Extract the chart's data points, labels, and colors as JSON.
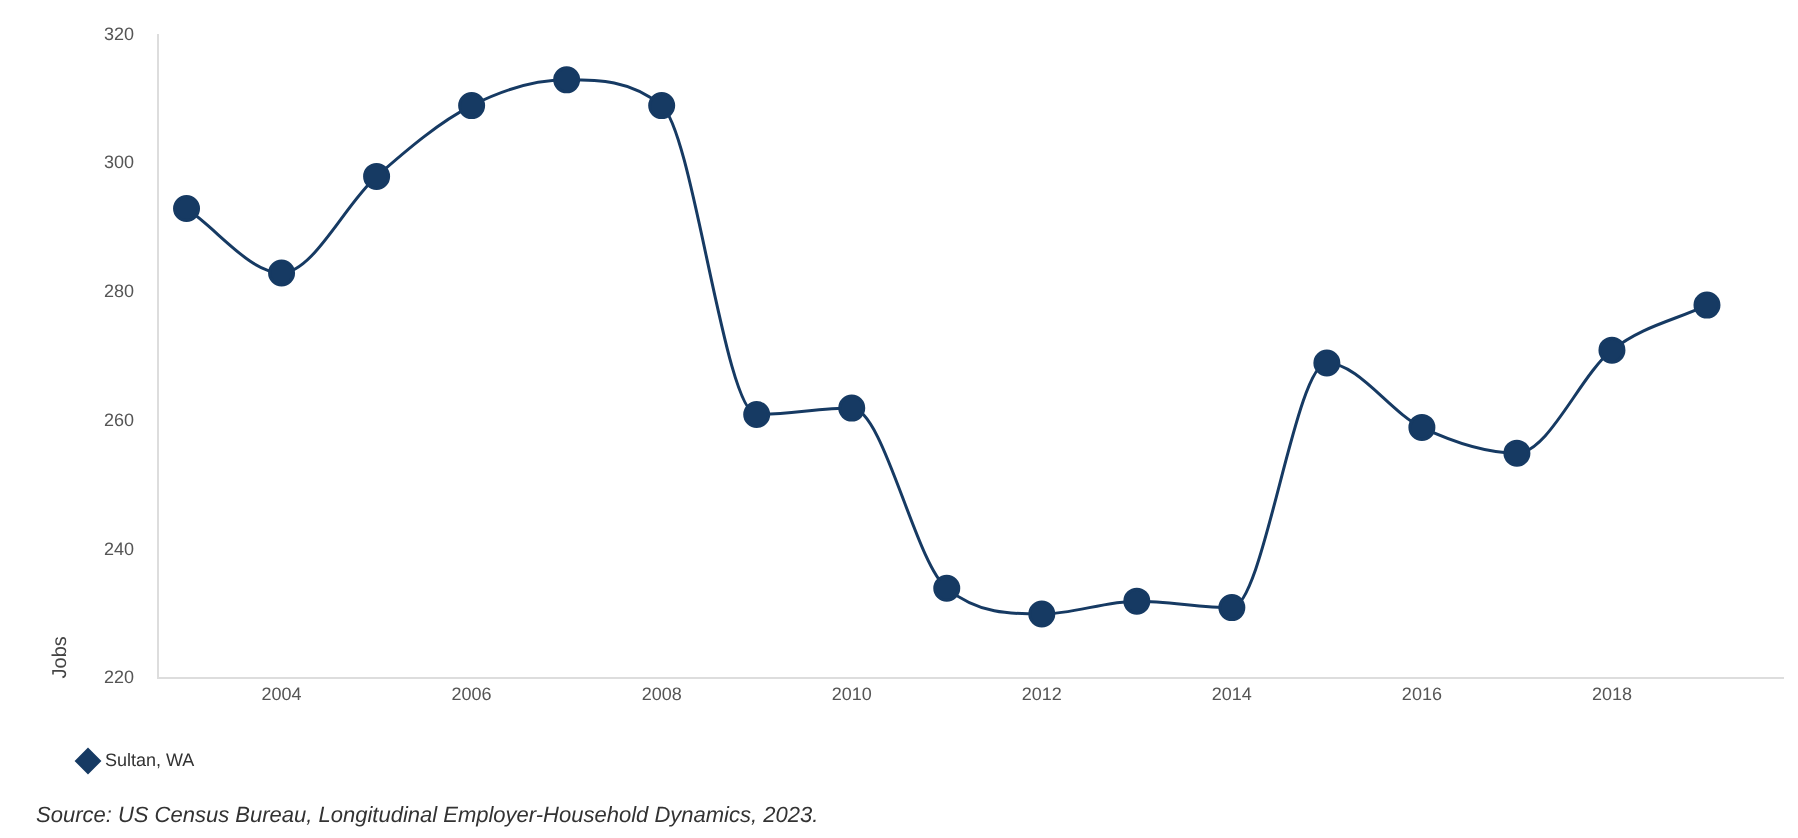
{
  "chart_data": {
    "type": "line",
    "ylabel": "Jobs",
    "x": [
      2003,
      2004,
      2005,
      2006,
      2007,
      2008,
      2009,
      2010,
      2011,
      2012,
      2013,
      2014,
      2015,
      2016,
      2017,
      2018,
      2019
    ],
    "series": [
      {
        "name": "Sultan, WA",
        "color": "#163a63",
        "values": [
          293,
          283,
          298,
          309,
          313,
          309,
          261,
          262,
          234,
          230,
          232,
          231,
          269,
          259,
          255,
          271,
          278
        ]
      }
    ],
    "xlim": [
      2002.7,
      2019.8
    ],
    "xticks": [
      2004,
      2006,
      2008,
      2010,
      2012,
      2014,
      2016,
      2018
    ],
    "ylim": [
      220,
      320
    ],
    "yticks": [
      220,
      240,
      260,
      280,
      300,
      320
    ],
    "grid": false,
    "legend": "bottom left",
    "marker": "circle",
    "line_style": "solid",
    "annotations": [
      "Source: US Census Bureau, Longitudinal Employer-Household Dynamics, 2023."
    ]
  }
}
